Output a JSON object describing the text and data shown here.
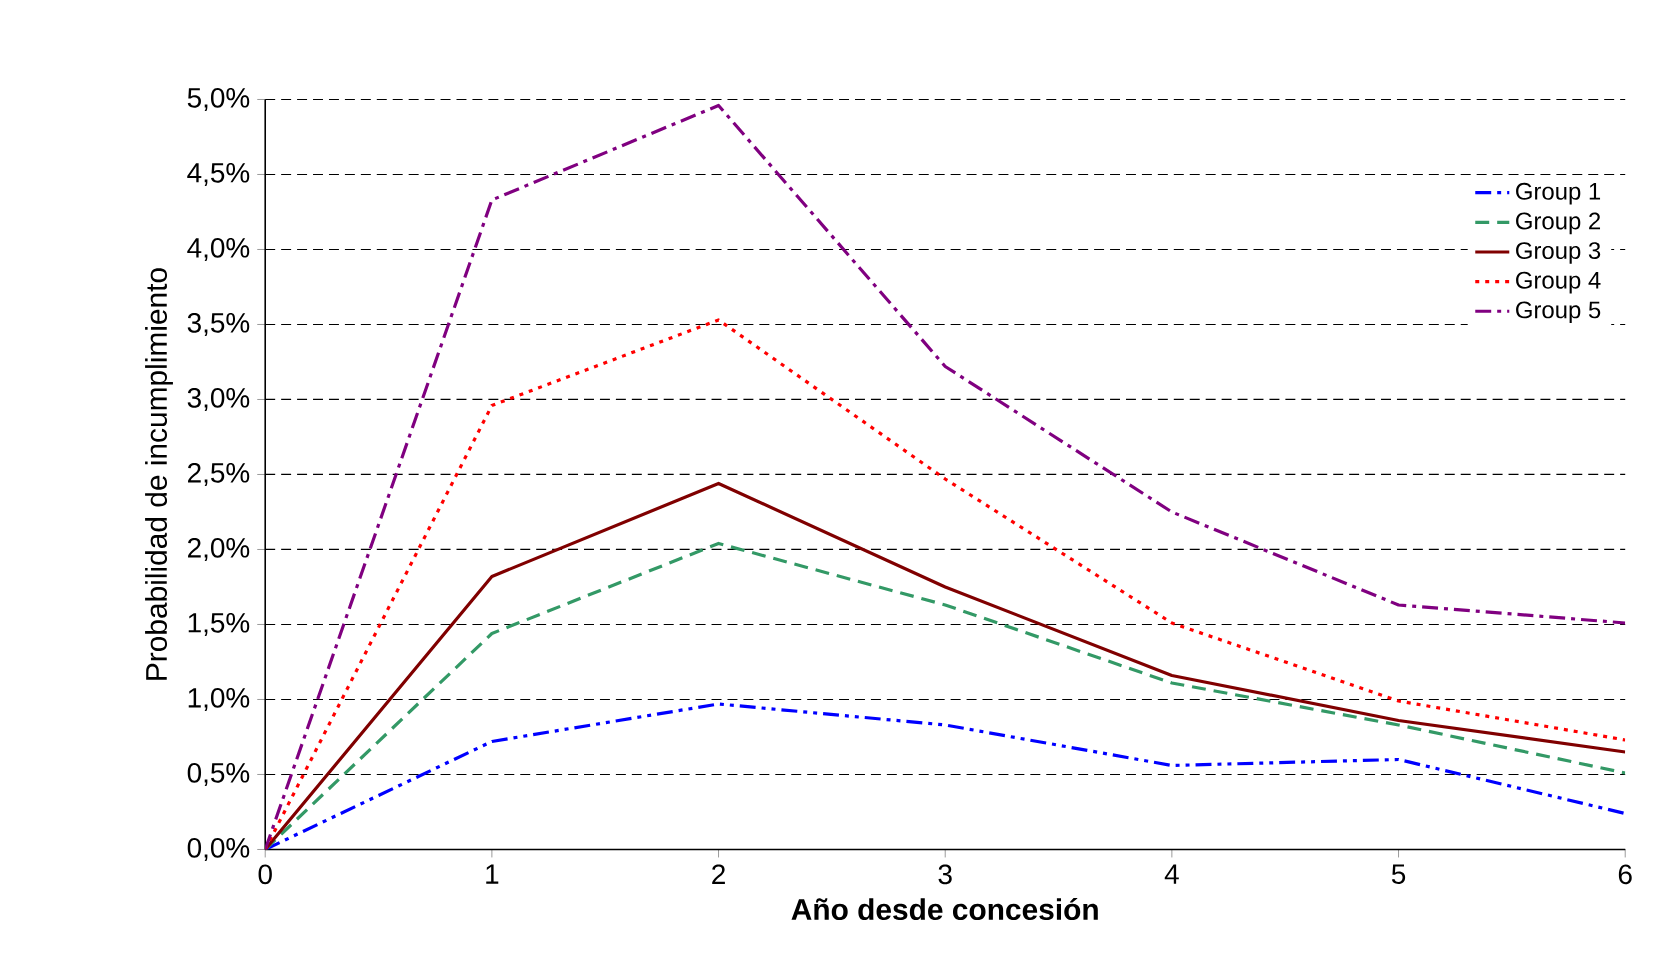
{
  "chart_data": {
    "type": "line",
    "xlabel": "Año desde concesión",
    "ylabel": "Probabilidad de incumplimiento",
    "x": [
      0,
      1,
      2,
      3,
      4,
      5,
      6
    ],
    "series": [
      {
        "name": "Group 1",
        "color": "#0000ff",
        "line_style": "dashdotdot",
        "values": [
          0,
          0.72,
          0.97,
          0.83,
          0.56,
          0.6,
          0.24
        ]
      },
      {
        "name": "Group 2",
        "color": "#339966",
        "line_style": "dashed",
        "values": [
          0,
          1.44,
          2.04,
          1.63,
          1.11,
          0.83,
          0.51
        ]
      },
      {
        "name": "Group 3",
        "color": "#800000",
        "line_style": "solid",
        "values": [
          0,
          1.82,
          2.44,
          1.75,
          1.16,
          0.86,
          0.65
        ]
      },
      {
        "name": "Group 4",
        "color": "#ff0000",
        "line_style": "dotted",
        "values": [
          0,
          2.96,
          3.53,
          2.47,
          1.51,
          0.99,
          0.73
        ]
      },
      {
        "name": "Group 5",
        "color": "#800080",
        "line_style": "dashdot",
        "values": [
          0,
          4.33,
          4.96,
          3.22,
          2.25,
          1.63,
          1.51
        ]
      }
    ],
    "xlim": [
      0,
      6
    ],
    "xticks": [
      0,
      1,
      2,
      3,
      4,
      5,
      6
    ],
    "ylim": [
      0,
      5
    ],
    "yticks": [
      {
        "value": 0,
        "label": "0,0%"
      },
      {
        "value": 0.5,
        "label": "0,5%"
      },
      {
        "value": 1,
        "label": "1,0%"
      },
      {
        "value": 1.5,
        "label": "1,5%"
      },
      {
        "value": 2,
        "label": "2,0%"
      },
      {
        "value": 2.5,
        "label": "2,5%"
      },
      {
        "value": 3,
        "label": "3,0%"
      },
      {
        "value": 3.5,
        "label": "3,5%"
      },
      {
        "value": 4,
        "label": "4,0%"
      },
      {
        "value": 4.5,
        "label": "4,5%"
      },
      {
        "value": 5,
        "label": "5,0%"
      }
    ],
    "grid": "y",
    "legend": "top right",
    "marker": "none"
  }
}
